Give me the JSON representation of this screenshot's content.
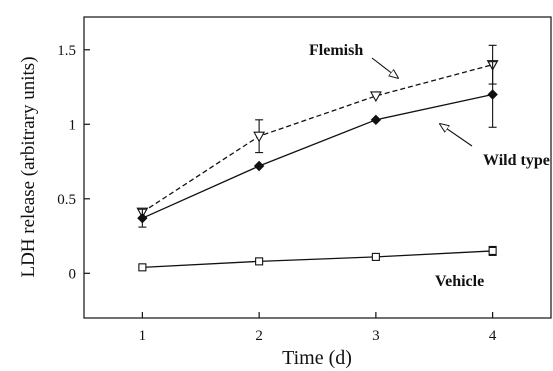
{
  "chart_data": {
    "type": "line",
    "title": "",
    "xlabel": "Time (d)",
    "ylabel": "LDH release (arbitrary  units)",
    "xlim": [
      0.5,
      4.5
    ],
    "ylim": [
      -0.3,
      1.72
    ],
    "x_ticks": [
      1,
      2,
      3,
      4
    ],
    "y_ticks": [
      0,
      0.5,
      1,
      1.5
    ],
    "x_tick_labels": [
      "1",
      "2",
      "3",
      "4"
    ],
    "y_tick_labels": [
      "0",
      "0.5",
      "1",
      "1.5"
    ],
    "grid": false,
    "legend": "none",
    "series": [
      {
        "name": "Flemish",
        "x": [
          1,
          2,
          3,
          4
        ],
        "y": [
          0.41,
          0.92,
          1.19,
          1.4
        ],
        "error": [
          0.02,
          0.11,
          0.02,
          0.13
        ],
        "marker": "open-triangle-down",
        "line_style": "dashed",
        "color": "#111111"
      },
      {
        "name": "Wild type",
        "x": [
          1,
          2,
          3,
          4
        ],
        "y": [
          0.37,
          0.72,
          1.03,
          1.2
        ],
        "error": [
          0.06,
          0.01,
          0.01,
          0.22
        ],
        "marker": "filled-diamond",
        "line_style": "solid",
        "color": "#111111"
      },
      {
        "name": "Vehicle",
        "x": [
          1,
          2,
          3,
          4
        ],
        "y": [
          0.04,
          0.08,
          0.11,
          0.15
        ],
        "error": [
          0.01,
          0.01,
          0.02,
          0.03
        ],
        "marker": "open-square",
        "line_style": "solid",
        "color": "#111111"
      }
    ],
    "annotations": [
      {
        "series": "Flemish",
        "text": "Flemish",
        "arrow": true
      },
      {
        "series": "Wild type",
        "text": "Wild type",
        "arrow": true
      },
      {
        "series": "Vehicle",
        "text": "Vehicle",
        "arrow": false
      }
    ]
  }
}
